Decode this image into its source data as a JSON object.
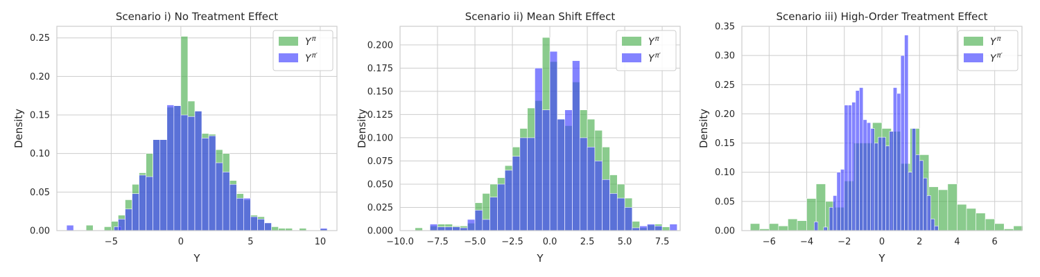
{
  "chart_data": [
    {
      "type": "bar",
      "title": "Scenario i) No Treatment Effect",
      "xlabel": "Y",
      "ylabel": "Density",
      "xlim": [
        -8.9,
        11.2
      ],
      "ylim": [
        0,
        0.265
      ],
      "xticks": [
        -5,
        0,
        5,
        10
      ],
      "yticks": [
        0.0,
        0.05,
        0.1,
        0.15,
        0.2,
        0.25
      ],
      "grid": true,
      "legend": {
        "placement": "top-right",
        "entries": [
          {
            "base": "Y",
            "sup": "π"
          },
          {
            "base": "Y",
            "sup": "π′"
          }
        ]
      },
      "series": [
        {
          "label": "Y^π",
          "color": "#4caf50",
          "bins": [
            [
              -6.8,
              0.007
            ],
            [
              -5.5,
              0.005
            ],
            [
              -5,
              0.012
            ],
            [
              -4.5,
              0.02
            ],
            [
              -4,
              0.04
            ],
            [
              -3.5,
              0.06
            ],
            [
              -3,
              0.075
            ],
            [
              -2.5,
              0.1
            ],
            [
              -2,
              0.118
            ],
            [
              -1.5,
              0.118
            ],
            [
              -1,
              0.16
            ],
            [
              -0.5,
              0.162
            ],
            [
              0,
              0.252
            ],
            [
              0.5,
              0.168
            ],
            [
              1,
              0.155
            ],
            [
              1.5,
              0.126
            ],
            [
              2,
              0.125
            ],
            [
              2.5,
              0.105
            ],
            [
              3,
              0.1
            ],
            [
              3.5,
              0.065
            ],
            [
              4,
              0.048
            ],
            [
              4.5,
              0.04
            ],
            [
              5,
              0.02
            ],
            [
              5.5,
              0.018
            ],
            [
              6,
              0.01
            ],
            [
              6.5,
              0.005
            ],
            [
              7,
              0.003
            ],
            [
              7.5,
              0.003
            ],
            [
              8.5,
              0.003
            ],
            [
              10,
              0.002
            ]
          ],
          "binwidth": 0.5
        },
        {
          "label": "Y^π′",
          "color": "#4040ff",
          "bins": [
            [
              -8.2,
              0.007
            ],
            [
              -4.8,
              0.005
            ],
            [
              -4.5,
              0.015
            ],
            [
              -4,
              0.028
            ],
            [
              -3.5,
              0.048
            ],
            [
              -3,
              0.072
            ],
            [
              -2.5,
              0.07
            ],
            [
              -2,
              0.118
            ],
            [
              -1.5,
              0.118
            ],
            [
              -1,
              0.163
            ],
            [
              -0.5,
              0.162
            ],
            [
              0,
              0.15
            ],
            [
              0.5,
              0.148
            ],
            [
              1,
              0.155
            ],
            [
              1.5,
              0.12
            ],
            [
              2,
              0.123
            ],
            [
              2.5,
              0.088
            ],
            [
              3,
              0.076
            ],
            [
              3.5,
              0.06
            ],
            [
              4,
              0.042
            ],
            [
              4.5,
              0.042
            ],
            [
              5,
              0.018
            ],
            [
              5.5,
              0.015
            ],
            [
              6,
              0.01
            ],
            [
              10,
              0.003
            ]
          ],
          "binwidth": 0.5
        }
      ]
    },
    {
      "type": "bar",
      "title": "Scenario ii) Mean Shift Effect",
      "xlabel": "Y",
      "ylabel": "Density",
      "xlim": [
        -10.0,
        8.7
      ],
      "ylim": [
        0,
        0.22
      ],
      "xticks": [
        -10.0,
        -7.5,
        -5.0,
        -2.5,
        0.0,
        2.5,
        5.0,
        7.5
      ],
      "xticklabels": [
        "−10.0",
        "−7.5",
        "−5.0",
        "−2.5",
        "0.0",
        "2.5",
        "5.0",
        "7.5"
      ],
      "yticks": [
        0.0,
        0.025,
        0.05,
        0.075,
        0.1,
        0.125,
        0.15,
        0.175,
        0.2
      ],
      "grid": true,
      "legend": {
        "placement": "top-right",
        "entries": [
          {
            "base": "Y",
            "sup": "π"
          },
          {
            "base": "Y",
            "sup": "π′"
          }
        ]
      },
      "series": [
        {
          "label": "Y^π",
          "color": "#4caf50",
          "bins": [
            [
              -9,
              0.003
            ],
            [
              -8,
              0.005
            ],
            [
              -7.5,
              0.007
            ],
            [
              -7,
              0.007
            ],
            [
              -6.5,
              0.005
            ],
            [
              -6,
              0.005
            ],
            [
              -5.5,
              0.008
            ],
            [
              -5,
              0.03
            ],
            [
              -4.5,
              0.04
            ],
            [
              -4,
              0.05
            ],
            [
              -3.5,
              0.057
            ],
            [
              -3,
              0.07
            ],
            [
              -2.5,
              0.09
            ],
            [
              -2,
              0.11
            ],
            [
              -1.5,
              0.132
            ],
            [
              -1,
              0.14
            ],
            [
              -0.5,
              0.208
            ],
            [
              0,
              0.182
            ],
            [
              0.5,
              0.12
            ],
            [
              1,
              0.113
            ],
            [
              1.5,
              0.16
            ],
            [
              2,
              0.13
            ],
            [
              2.5,
              0.12
            ],
            [
              3,
              0.108
            ],
            [
              3.5,
              0.09
            ],
            [
              4,
              0.06
            ],
            [
              4.5,
              0.05
            ],
            [
              5,
              0.035
            ],
            [
              5.5,
              0.01
            ],
            [
              6,
              0.003
            ],
            [
              6.5,
              0.006
            ],
            [
              7,
              0.007
            ],
            [
              7.5,
              0.004
            ]
          ],
          "binwidth": 0.5
        },
        {
          "label": "Y^π′",
          "color": "#4040ff",
          "bins": [
            [
              -8,
              0.007
            ],
            [
              -7.5,
              0.004
            ],
            [
              -7,
              0.004
            ],
            [
              -6.5,
              0.004
            ],
            [
              -6,
              0.003
            ],
            [
              -5.5,
              0.012
            ],
            [
              -5,
              0.022
            ],
            [
              -4.5,
              0.012
            ],
            [
              -4,
              0.036
            ],
            [
              -3.5,
              0.05
            ],
            [
              -3,
              0.065
            ],
            [
              -2.5,
              0.08
            ],
            [
              -2,
              0.1
            ],
            [
              -1.5,
              0.1
            ],
            [
              -1,
              0.175
            ],
            [
              -0.5,
              0.13
            ],
            [
              0,
              0.193
            ],
            [
              0.5,
              0.12
            ],
            [
              1,
              0.13
            ],
            [
              1.5,
              0.183
            ],
            [
              2,
              0.1
            ],
            [
              2.5,
              0.09
            ],
            [
              3,
              0.075
            ],
            [
              3.5,
              0.055
            ],
            [
              4,
              0.04
            ],
            [
              4.5,
              0.035
            ],
            [
              5,
              0.025
            ],
            [
              5.5,
              0.003
            ],
            [
              6,
              0.005
            ],
            [
              6.5,
              0.007
            ],
            [
              7,
              0.005
            ],
            [
              8,
              0.007
            ]
          ],
          "binwidth": 0.5
        }
      ]
    },
    {
      "type": "bar",
      "title": "Scenario iii) High-Order Treatment Effect",
      "xlabel": "Y",
      "ylabel": "Density",
      "xlim": [
        -7.45,
        7.45
      ],
      "ylim": [
        0,
        0.35
      ],
      "xticks": [
        -6,
        -4,
        -2,
        0,
        2,
        4,
        6
      ],
      "xticklabels": [
        "−6",
        "−4",
        "−2",
        "0",
        "2",
        "4",
        "6"
      ],
      "yticks": [
        0.0,
        0.05,
        0.1,
        0.15,
        0.2,
        0.25,
        0.3,
        0.35
      ],
      "grid": true,
      "legend": {
        "placement": "top-right",
        "entries": [
          {
            "base": "Y",
            "sup": "π"
          },
          {
            "base": "Y",
            "sup": "π′"
          }
        ]
      },
      "series": [
        {
          "label": "Y^π",
          "color": "#4caf50",
          "bins": [
            [
              -7,
              0.012
            ],
            [
              -6.5,
              0.003
            ],
            [
              -6,
              0.012
            ],
            [
              -5.5,
              0.008
            ],
            [
              -5,
              0.02
            ],
            [
              -4.5,
              0.017
            ],
            [
              -4,
              0.055
            ],
            [
              -3.5,
              0.08
            ],
            [
              -3,
              0.05
            ],
            [
              -2.5,
              0.04
            ],
            [
              -2,
              0.085
            ],
            [
              -1.5,
              0.15
            ],
            [
              -1,
              0.15
            ],
            [
              -0.5,
              0.185
            ],
            [
              0,
              0.175
            ],
            [
              0.5,
              0.17
            ],
            [
              1,
              0.115
            ],
            [
              1.5,
              0.175
            ],
            [
              2,
              0.13
            ],
            [
              2.5,
              0.075
            ],
            [
              3,
              0.07
            ],
            [
              3.5,
              0.08
            ],
            [
              4,
              0.045
            ],
            [
              4.5,
              0.038
            ],
            [
              5,
              0.03
            ],
            [
              5.5,
              0.02
            ],
            [
              6,
              0.012
            ],
            [
              6.5,
              0.003
            ],
            [
              7,
              0.008
            ]
          ],
          "binwidth": 0.5
        },
        {
          "label": "Y^π′",
          "color": "#4040ff",
          "bins": [
            [
              -3.6,
              0.015
            ],
            [
              -3.1,
              0.006
            ],
            [
              -2.8,
              0.04
            ],
            [
              -2.6,
              0.06
            ],
            [
              -2.4,
              0.1
            ],
            [
              -2.2,
              0.105
            ],
            [
              -2,
              0.215
            ],
            [
              -1.8,
              0.215
            ],
            [
              -1.6,
              0.22
            ],
            [
              -1.4,
              0.24
            ],
            [
              -1.2,
              0.245
            ],
            [
              -1,
              0.19
            ],
            [
              -0.8,
              0.185
            ],
            [
              -0.6,
              0.175
            ],
            [
              -0.4,
              0.15
            ],
            [
              -0.2,
              0.16
            ],
            [
              0,
              0.16
            ],
            [
              0.2,
              0.145
            ],
            [
              0.4,
              0.17
            ],
            [
              0.6,
              0.245
            ],
            [
              0.8,
              0.235
            ],
            [
              1,
              0.3
            ],
            [
              1.2,
              0.335
            ],
            [
              1.4,
              0.1
            ],
            [
              1.6,
              0.175
            ],
            [
              1.8,
              0.13
            ],
            [
              2,
              0.12
            ],
            [
              2.2,
              0.09
            ],
            [
              2.4,
              0.06
            ],
            [
              2.6,
              0.02
            ],
            [
              2.8,
              0.008
            ]
          ],
          "binwidth": 0.2
        }
      ]
    }
  ]
}
